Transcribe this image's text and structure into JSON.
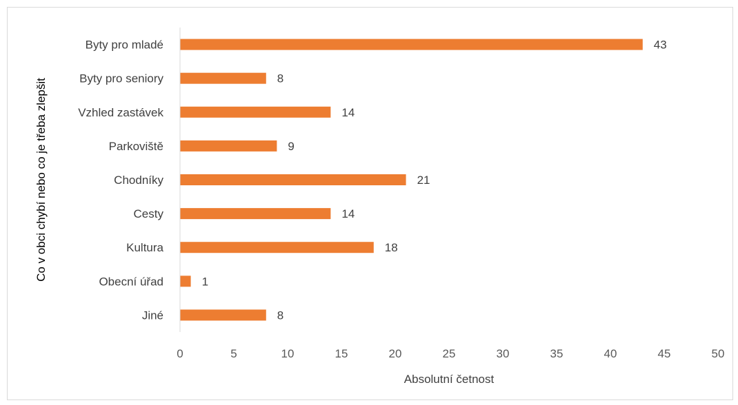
{
  "chart_data": {
    "type": "bar",
    "orientation": "horizontal",
    "categories": [
      "Byty pro mladé",
      "Byty pro seniory",
      "Vzhled zastávek",
      "Parkoviště",
      "Chodníky",
      "Cesty",
      "Kultura",
      "Obecní úřad",
      "Jiné"
    ],
    "values": [
      43,
      8,
      14,
      9,
      21,
      14,
      18,
      1,
      8
    ],
    "xlabel": "Absolutní četnost",
    "ylabel": "Co v obci chybí nebo co je třeba zlepšit",
    "xlim": [
      0,
      50
    ],
    "xticks": [
      0,
      5,
      10,
      15,
      20,
      25,
      30,
      35,
      40,
      45,
      50
    ],
    "grid": false,
    "bar_color": "#ED7D31"
  }
}
